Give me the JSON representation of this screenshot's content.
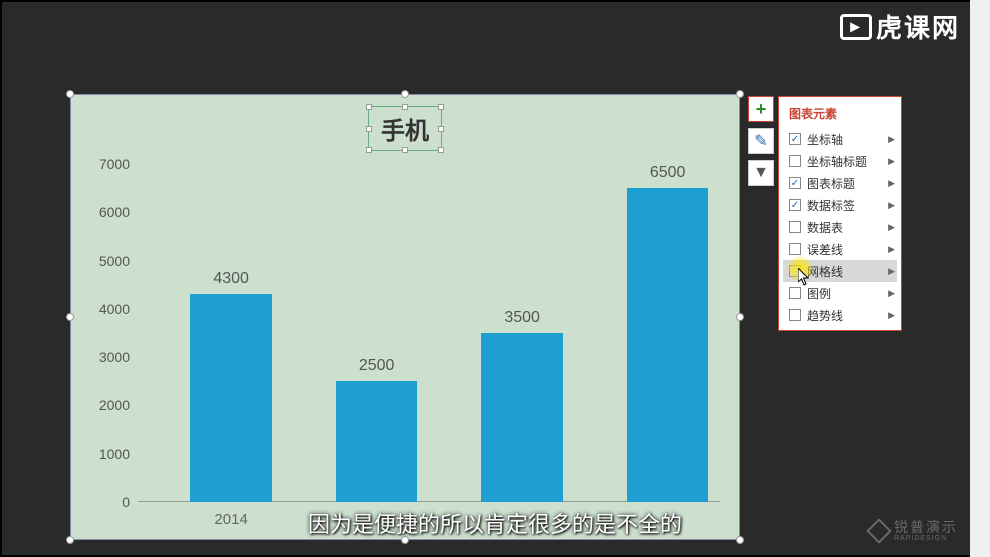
{
  "watermark_top": "虎课网",
  "watermark_bottom": {
    "cn": "锐普演示",
    "en": "RAPIDESIGN"
  },
  "chart": {
    "type": "bar",
    "title": "手机",
    "background_color": "#cde0ce",
    "bar_color": "#1d9fd3",
    "ylim": [
      0,
      7000
    ],
    "ytick_step": 1000,
    "yticks": [
      "0",
      "1000",
      "2000",
      "3000",
      "4000",
      "5000",
      "6000",
      "7000"
    ],
    "categories": [
      "2014",
      "",
      "",
      ""
    ],
    "values": [
      4300,
      2500,
      3500,
      6500
    ],
    "value_labels": [
      "4300",
      "2500",
      "3500",
      "6500"
    ],
    "label_fontsize": 16,
    "bar_width_pct": 14,
    "bar_positions_pct": [
      9,
      34,
      59,
      84
    ]
  },
  "tool_icons": [
    "plus",
    "brush",
    "funnel"
  ],
  "elements_panel": {
    "title": "图表元素",
    "items": [
      {
        "label": "坐标轴",
        "checked": true,
        "has_sub": true
      },
      {
        "label": "坐标轴标题",
        "checked": false,
        "has_sub": true
      },
      {
        "label": "图表标题",
        "checked": true,
        "has_sub": true
      },
      {
        "label": "数据标签",
        "checked": true,
        "has_sub": true
      },
      {
        "label": "数据表",
        "checked": false,
        "has_sub": true
      },
      {
        "label": "误差线",
        "checked": false,
        "has_sub": true
      },
      {
        "label": "网格线",
        "checked": false,
        "has_sub": true,
        "highlight": true
      },
      {
        "label": "图例",
        "checked": false,
        "has_sub": true
      },
      {
        "label": "趋势线",
        "checked": false,
        "has_sub": true
      }
    ]
  },
  "subtitle": "因为是便捷的所以肯定很多的是不全的"
}
